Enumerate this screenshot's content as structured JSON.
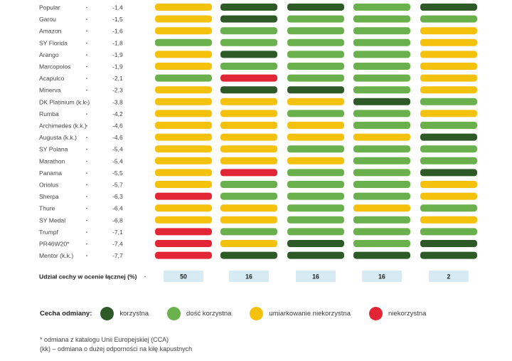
{
  "colors": {
    "korzystna": "#2d5a27",
    "dosc_korzystna": "#6ab04c",
    "umiarkowanie_niekorzystna": "#f4c20d",
    "niekorzystna": "#e32636",
    "share_box": "#d6ebf3"
  },
  "chart_data": {
    "type": "table",
    "varieties": [
      {
        "name": "Popular",
        "score": "-1,4",
        "ratings": [
          "u",
          "k",
          "k",
          "d",
          "k"
        ]
      },
      {
        "name": "Garou",
        "score": "-1,5",
        "ratings": [
          "u",
          "k",
          "d",
          "d",
          "d"
        ]
      },
      {
        "name": "Amazon",
        "score": "-1,6",
        "ratings": [
          "u",
          "d",
          "d",
          "d",
          "u"
        ]
      },
      {
        "name": "SY Florida",
        "score": "-1,8",
        "ratings": [
          "d",
          "d",
          "d",
          "d",
          "u"
        ]
      },
      {
        "name": "Arango",
        "score": "-1,9",
        "ratings": [
          "u",
          "k",
          "d",
          "d",
          "u"
        ]
      },
      {
        "name": "Marcopolos",
        "score": "-1,9",
        "ratings": [
          "u",
          "d",
          "d",
          "d",
          "u"
        ]
      },
      {
        "name": "Acapulco",
        "score": "-2,1",
        "ratings": [
          "d",
          "n",
          "d",
          "d",
          "u"
        ]
      },
      {
        "name": "Minerva",
        "score": "-2,3",
        "ratings": [
          "u",
          "k",
          "k",
          "d",
          "u"
        ]
      },
      {
        "name": "DK Platinium (k.k.)",
        "score": "-3,8",
        "ratings": [
          "u",
          "u",
          "u",
          "k",
          "d"
        ]
      },
      {
        "name": "Rumba",
        "score": "-4,2",
        "ratings": [
          "u",
          "u",
          "d",
          "d",
          "u"
        ]
      },
      {
        "name": "Archimedes (k.k.)",
        "score": "-4,6",
        "ratings": [
          "u",
          "u",
          "u",
          "d",
          "d"
        ]
      },
      {
        "name": "Augusta (k.k.)",
        "score": "-4,6",
        "ratings": [
          "u",
          "u",
          "u",
          "u",
          "k"
        ]
      },
      {
        "name": "SY Polana",
        "score": "-5,4",
        "ratings": [
          "u",
          "u",
          "d",
          "d",
          "d"
        ]
      },
      {
        "name": "Marathon",
        "score": "-5,4",
        "ratings": [
          "u",
          "u",
          "u",
          "d",
          "d"
        ]
      },
      {
        "name": "Panama",
        "score": "-5,5",
        "ratings": [
          "u",
          "n",
          "d",
          "d",
          "k"
        ]
      },
      {
        "name": "Oriolus",
        "score": "-5,7",
        "ratings": [
          "u",
          "d",
          "d",
          "d",
          "u"
        ]
      },
      {
        "name": "Sherpa",
        "score": "-6,3",
        "ratings": [
          "n",
          "d",
          "d",
          "d",
          "u"
        ]
      },
      {
        "name": "Thure",
        "score": "-6,4",
        "ratings": [
          "u",
          "u",
          "d",
          "u",
          "d"
        ]
      },
      {
        "name": "SY Medal",
        "score": "-6,8",
        "ratings": [
          "u",
          "u",
          "d",
          "d",
          "u"
        ]
      },
      {
        "name": "Trumpf",
        "score": "-7,1",
        "ratings": [
          "n",
          "d",
          "d",
          "d",
          "d"
        ]
      },
      {
        "name": "PR46W20*",
        "score": "-7,4",
        "ratings": [
          "n",
          "u",
          "k",
          "d",
          "k"
        ]
      },
      {
        "name": "Mentor (k.k.)",
        "score": "-7,7",
        "ratings": [
          "n",
          "k",
          "k",
          "k",
          "k"
        ]
      }
    ],
    "share_label": "Udział cechy w ocenie łącznej (%)",
    "shares": [
      "50",
      "16",
      "16",
      "16",
      "2"
    ],
    "legend_title": "Cecha odmiany:",
    "legend": [
      {
        "key": "k",
        "label": "korzystna"
      },
      {
        "key": "d",
        "label": "dość korzystna"
      },
      {
        "key": "u",
        "label": "umiarkowanie niekorzystna"
      },
      {
        "key": "n",
        "label": "niekorzystna"
      }
    ]
  },
  "footnotes": {
    "line1": "* odmiana z katalogu Unii Europejskiej (CCA)",
    "line2": "(kk) – odmiana o dużej odporności na kiłę kapustnych"
  }
}
